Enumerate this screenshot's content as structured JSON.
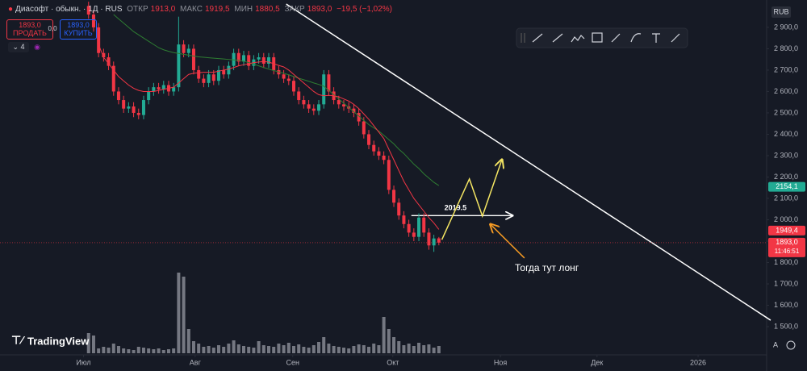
{
  "header": {
    "symbol": "Диасофт · обыкн. · 1Д · RUS",
    "open_label": "ОТКР",
    "open": "1913,0",
    "high_label": "МАКС",
    "high": "1919,5",
    "low_label": "МИН",
    "low": "1880,5",
    "close_label": "ЗАКР",
    "close": "1893,0",
    "change": "−19,5 (−1,02%)",
    "sell_price": "1893,0",
    "sell": "ПРОДАТЬ",
    "spread": "0,0",
    "buy_price": "1893,0",
    "buy": "КУПИТЬ",
    "indicators": "4",
    "currency": "RUB",
    "logo": "TradingView",
    "auto": "A"
  },
  "chart_data": {
    "type": "candlestick",
    "up_color": "#22ab94",
    "down_color": "#f23645",
    "grid": false,
    "xlim": [
      -17.7,
      135.5
    ],
    "ylim": [
      1368,
      3028
    ],
    "xticks": [
      {
        "value": -1,
        "label": "Июл"
      },
      {
        "value": 21.3,
        "label": "Авг"
      },
      {
        "value": 40.8,
        "label": "Сен"
      },
      {
        "value": 60.8,
        "label": "Окт"
      },
      {
        "value": 82.3,
        "label": "Ноя"
      },
      {
        "value": 101.6,
        "label": "Дек"
      },
      {
        "value": 121.8,
        "label": "2026"
      }
    ],
    "yticks": [
      {
        "value": 1500,
        "label": "1 500,0"
      },
      {
        "value": 1600,
        "label": "1 600,0"
      },
      {
        "value": 1700,
        "label": "1 700,0"
      },
      {
        "value": 1800,
        "label": "1 800,0"
      },
      {
        "value": 1900,
        "label": "1 900,0"
      },
      {
        "value": 2000,
        "label": "2 000,0"
      },
      {
        "value": 2100,
        "label": "2 100,0"
      },
      {
        "value": 2200,
        "label": "2 200,0"
      },
      {
        "value": 2300,
        "label": "2 300,0"
      },
      {
        "value": 2400,
        "label": "2 400,0"
      },
      {
        "value": 2500,
        "label": "2 500,0"
      },
      {
        "value": 2600,
        "label": "2 600,0"
      },
      {
        "value": 2700,
        "label": "2 700,0"
      },
      {
        "value": 2800,
        "label": "2 800,0"
      },
      {
        "value": 2900,
        "label": "2 900,0"
      }
    ],
    "open": [
      3000,
      2960,
      2900,
      2780,
      2760,
      2720,
      2600,
      2560,
      2520,
      2530,
      2500,
      2490,
      2560,
      2600,
      2620,
      2610,
      2630,
      2600,
      2620,
      2820,
      2780,
      2800,
      2700,
      2660,
      2640,
      2680,
      2650,
      2700,
      2680,
      2720,
      2780,
      2740,
      2770,
      2720,
      2750,
      2760,
      2730,
      2760,
      2700,
      2680,
      2660,
      2650,
      2600,
      2560,
      2540,
      2520,
      2510,
      2540,
      2680,
      2600,
      2560,
      2540,
      2530,
      2520,
      2500,
      2460,
      2400,
      2350,
      2320,
      2300,
      2280,
      2140,
      2080,
      2020,
      1980,
      1940,
      1920,
      2010,
      1940,
      1880,
      1913
    ],
    "high": [
      3020,
      2980,
      2920,
      2800,
      2780,
      2740,
      2620,
      2580,
      2550,
      2550,
      2520,
      2580,
      2620,
      2640,
      2640,
      2650,
      2650,
      2640,
      2950,
      2840,
      2820,
      2820,
      2720,
      2680,
      2700,
      2700,
      2720,
      2720,
      2740,
      2800,
      2800,
      2790,
      2790,
      2770,
      2780,
      2780,
      2780,
      2780,
      2720,
      2700,
      2680,
      2670,
      2620,
      2580,
      2560,
      2540,
      2560,
      2700,
      2700,
      2620,
      2580,
      2560,
      2550,
      2540,
      2520,
      2480,
      2420,
      2370,
      2340,
      2320,
      2300,
      2160,
      2100,
      2040,
      2000,
      1960,
      2030,
      2030,
      1960,
      1930,
      1919.5
    ],
    "low": [
      2940,
      2880,
      2760,
      2740,
      2700,
      2580,
      2540,
      2500,
      2500,
      2480,
      2470,
      2470,
      2540,
      2580,
      2590,
      2590,
      2580,
      2580,
      2600,
      2760,
      2760,
      2680,
      2640,
      2620,
      2620,
      2630,
      2630,
      2660,
      2660,
      2700,
      2720,
      2720,
      2700,
      2700,
      2730,
      2710,
      2710,
      2680,
      2660,
      2640,
      2630,
      2580,
      2540,
      2520,
      2500,
      2490,
      2490,
      2520,
      2580,
      2540,
      2520,
      2510,
      2500,
      2480,
      2440,
      2380,
      2330,
      2300,
      2280,
      2260,
      2120,
      2060,
      2000,
      1960,
      1920,
      1900,
      1900,
      1920,
      1860,
      1850,
      1880.5
    ],
    "close": [
      2960,
      2900,
      2780,
      2760,
      2720,
      2600,
      2560,
      2520,
      2530,
      2500,
      2490,
      2560,
      2600,
      2620,
      2610,
      2630,
      2600,
      2620,
      2820,
      2780,
      2800,
      2700,
      2660,
      2640,
      2680,
      2650,
      2700,
      2680,
      2720,
      2780,
      2740,
      2770,
      2720,
      2750,
      2760,
      2730,
      2760,
      2700,
      2680,
      2660,
      2650,
      2600,
      2560,
      2540,
      2520,
      2510,
      2540,
      2680,
      2600,
      2560,
      2540,
      2530,
      2520,
      2500,
      2460,
      2400,
      2350,
      2320,
      2300,
      2280,
      2140,
      2080,
      2020,
      1980,
      1940,
      1920,
      2010,
      1940,
      1880,
      1912.5,
      1893
    ],
    "volumes": [
      250,
      220,
      60,
      80,
      70,
      120,
      90,
      60,
      50,
      40,
      80,
      70,
      60,
      50,
      60,
      40,
      50,
      60,
      1000,
      950,
      300,
      150,
      120,
      80,
      90,
      70,
      100,
      80,
      120,
      160,
      110,
      90,
      80,
      70,
      150,
      100,
      90,
      80,
      120,
      100,
      130,
      90,
      110,
      80,
      70,
      100,
      140,
      200,
      120,
      90,
      80,
      70,
      60,
      90,
      110,
      100,
      80,
      120,
      100,
      450,
      300,
      200,
      150,
      100,
      120,
      90,
      130,
      100,
      110,
      70,
      90
    ],
    "series": [
      {
        "color": "#f23645",
        "values": [
          null,
          null,
          2820,
          2760,
          2730,
          2700,
          2670,
          2650,
          2630,
          2615,
          2605,
          2600,
          2600,
          2600,
          2605,
          2610,
          2615,
          2620,
          2640,
          2660,
          2680,
          2685,
          2688,
          2690,
          2690,
          2690,
          2695,
          2700,
          2705,
          2712,
          2720,
          2725,
          2730,
          2735,
          2738,
          2740,
          2738,
          2730,
          2722,
          2715,
          2700,
          2680,
          2660,
          2640,
          2620,
          2600,
          2585,
          2580,
          2582,
          2580,
          2575,
          2565,
          2555,
          2540,
          2520,
          2495,
          2470,
          2440,
          2410,
          2380,
          2330,
          2280,
          2230,
          2180,
          2140,
          2100,
          2070,
          2040,
          2010,
          1985,
          1955
        ]
      },
      {
        "color": "#2e7d32",
        "values": [
          null,
          null,
          null,
          null,
          null,
          2960,
          2940,
          2920,
          2900,
          2880,
          2865,
          2850,
          2835,
          2820,
          2805,
          2795,
          2788,
          2782,
          2778,
          2774,
          2770,
          2766,
          2762,
          2760,
          2758,
          2756,
          2754,
          2752,
          2750,
          2748,
          2746,
          2742,
          2735,
          2728,
          2720,
          2712,
          2705,
          2698,
          2692,
          2685,
          2678,
          2670,
          2662,
          2655,
          2648,
          2640,
          2633,
          2625,
          2605,
          2585,
          2565,
          2545,
          2525,
          2505,
          2485,
          2465,
          2445,
          2430,
          2415,
          2395,
          2375,
          2355,
          2330,
          2310,
          2285,
          2260,
          2240,
          2215,
          2195,
          2175,
          2160
        ]
      }
    ],
    "price_labels": [
      {
        "value": 2154.1,
        "label": "2154,1",
        "color": "#22ab94"
      },
      {
        "value": 1949.4,
        "label": "1949,4",
        "color": "#f23645"
      },
      {
        "value": 1893,
        "label": "1893,0",
        "color": "#f23645"
      }
    ],
    "countdown": "11:46:51",
    "drawings": {
      "trendline": {
        "x": [
          39.5,
          136.3
        ],
        "y": [
          3009,
          1530
        ],
        "color": "#ffffff"
      },
      "level": {
        "value": 2019.5,
        "x": [
          64.5,
          84.7
        ],
        "color": "#ffffff"
      },
      "zigzag": {
        "x": [
          70.6,
          76.1,
          78.7,
          82.6
        ],
        "y": [
          1907,
          2191,
          2017,
          2281
        ],
        "color": "#f5e663"
      },
      "arrow": {
        "x": [
          87.1,
          80.3
        ],
        "y": [
          1821,
          1979
        ],
        "color": "#f59a23"
      },
      "note": "Тогда тут лонг"
    }
  }
}
